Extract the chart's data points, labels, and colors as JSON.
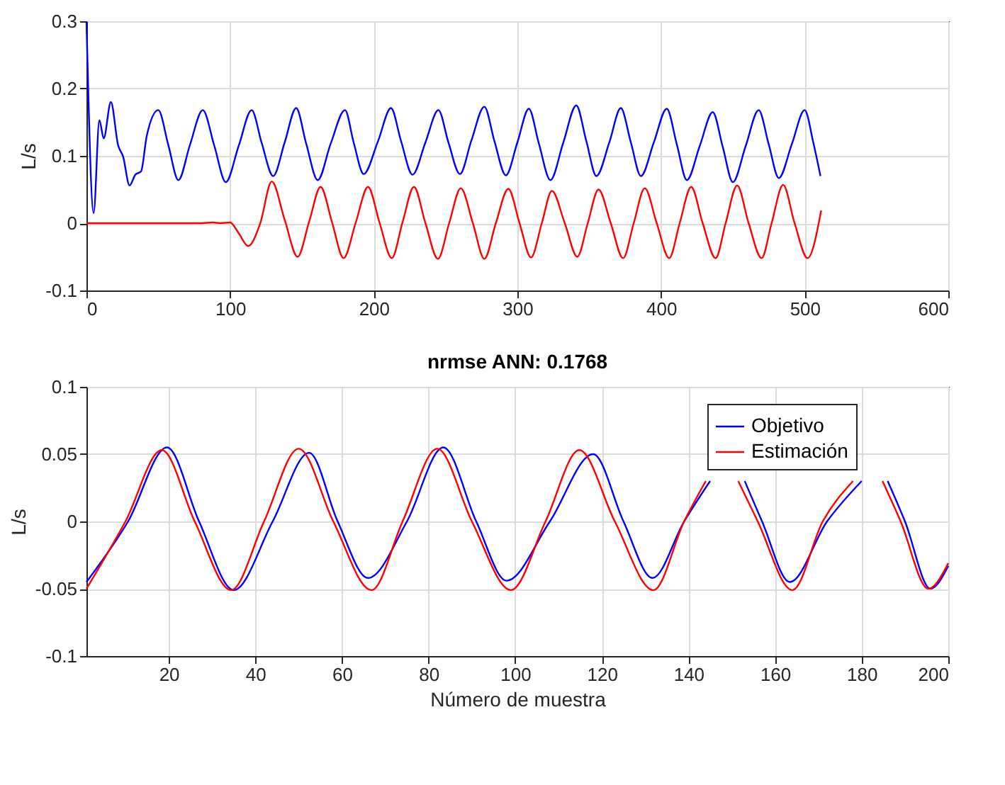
{
  "chart_data": [
    {
      "type": "line",
      "ylabel": "L/s",
      "xlim": [
        0,
        600
      ],
      "xticks": [
        0,
        100,
        200,
        300,
        400,
        500,
        600
      ],
      "ylim": [
        -0.1,
        0.3
      ],
      "yticks": [
        -0.1,
        0,
        0.1,
        0.2,
        0.3
      ],
      "grid": true,
      "legend": false,
      "series": [
        {
          "color": "#0000ff",
          "x": [
            0,
            5,
            9,
            12,
            17,
            22,
            25.5,
            30,
            34,
            38,
            42,
            50,
            57,
            64,
            72,
            81,
            89,
            97,
            106,
            115,
            122,
            130,
            138,
            146,
            153,
            161,
            170,
            180,
            186,
            193,
            203,
            212,
            219,
            227,
            236,
            245,
            252,
            260,
            268,
            277,
            284,
            292,
            300,
            308,
            315,
            323,
            332,
            341,
            348,
            355,
            364,
            372,
            379,
            386,
            395,
            404,
            411,
            418,
            427,
            436,
            443,
            450,
            459,
            468,
            475,
            482,
            491,
            500,
            506,
            511
          ],
          "values": [
            0.3,
            0.015,
            0.153,
            0.126,
            0.18,
            0.116,
            0.099,
            0.056,
            0.072,
            0.077,
            0.13,
            0.168,
            0.116,
            0.064,
            0.116,
            0.168,
            0.115,
            0.061,
            0.115,
            0.168,
            0.119,
            0.07,
            0.12,
            0.171,
            0.118,
            0.064,
            0.118,
            0.168,
            0.12,
            0.073,
            0.122,
            0.171,
            0.122,
            0.072,
            0.12,
            0.168,
            0.12,
            0.073,
            0.123,
            0.173,
            0.122,
            0.071,
            0.12,
            0.17,
            0.118,
            0.064,
            0.12,
            0.175,
            0.122,
            0.07,
            0.12,
            0.171,
            0.12,
            0.07,
            0.12,
            0.17,
            0.117,
            0.064,
            0.115,
            0.165,
            0.113,
            0.061,
            0.115,
            0.168,
            0.117,
            0.067,
            0.117,
            0.168,
            0.12,
            0.07
          ]
        },
        {
          "color": "#ff0000",
          "x": [
            0,
            80,
            88,
            93,
            100,
            106,
            112.6,
            121,
            129,
            138,
            147,
            155,
            163,
            171,
            179,
            187.5,
            196,
            204,
            212.6,
            220,
            228,
            236,
            244.7,
            252.5,
            260.6,
            269,
            277,
            285,
            293.7,
            301.5,
            309.5,
            317,
            324,
            333,
            341.7,
            349,
            356.5,
            365,
            373.6,
            381,
            388.7,
            397,
            405.7,
            413,
            421,
            429,
            438,
            445,
            453,
            461,
            470,
            477,
            485,
            493,
            502,
            511.5
          ],
          "values": [
            0,
            0,
            0.001,
            0,
            0.001,
            -0.015,
            -0.034,
            0,
            0.062,
            0.005,
            -0.05,
            0.002,
            0.054,
            0.001,
            -0.052,
            0.001,
            0.054,
            0.001,
            -0.052,
            0.001,
            0.054,
            0,
            -0.053,
            0,
            0.052,
            0,
            -0.053,
            0,
            0.051,
            0,
            -0.051,
            0,
            0.048,
            0,
            -0.05,
            0,
            0.05,
            0,
            -0.052,
            0,
            0.052,
            0,
            -0.052,
            0,
            0.054,
            0,
            -0.052,
            0,
            0.056,
            0,
            -0.052,
            0,
            0.057,
            0,
            -0.052,
            0.019
          ]
        }
      ]
    },
    {
      "type": "line",
      "title": "nrmse ANN: 0.1768",
      "xlabel": "Número de muestra",
      "ylabel": "L/s",
      "xlim": [
        1,
        200
      ],
      "xticks": [
        20,
        40,
        60,
        80,
        100,
        120,
        140,
        160,
        180,
        200
      ],
      "ylim": [
        -0.1,
        0.1
      ],
      "yticks": [
        -0.1,
        -0.05,
        0,
        0.05,
        0.1
      ],
      "grid": true,
      "legend": "top right",
      "series": [
        {
          "name": "Objetivo",
          "color": "#0000ff",
          "x": [
            1,
            10.6,
            19.6,
            27,
            35,
            44,
            52.4,
            59,
            66,
            75,
            83.4,
            91,
            98,
            108,
            118,
            125,
            131.7,
            139,
            145,
            150,
            153,
            157,
            163.4,
            172,
            180,
            183,
            186,
            190,
            195.9,
            200
          ],
          "values": [
            -0.045,
            0,
            0.055,
            0,
            -0.051,
            0,
            0.051,
            0,
            -0.042,
            0,
            0.055,
            0,
            -0.044,
            0,
            0.05,
            0,
            -0.042,
            0,
            0.03,
            null,
            0.03,
            0,
            -0.045,
            0,
            0.03,
            null,
            0.03,
            0,
            -0.05,
            -0.033
          ]
        },
        {
          "name": "Estimación",
          "color": "#ff0000",
          "x": [
            1,
            10,
            18.4,
            26,
            34.4,
            42,
            50,
            58,
            66.8,
            74,
            82,
            90,
            99,
            107,
            114.8,
            123,
            131.9,
            139,
            144,
            148,
            151.5,
            156,
            164,
            171,
            178,
            181,
            184.8,
            189,
            195.4,
            200
          ],
          "values": [
            -0.05,
            0,
            0.053,
            0,
            -0.051,
            0,
            0.054,
            0,
            -0.051,
            0,
            0.054,
            0,
            -0.051,
            0,
            0.053,
            0,
            -0.051,
            0,
            0.03,
            null,
            0.03,
            0,
            -0.051,
            0,
            0.03,
            null,
            0.03,
            0,
            -0.05,
            -0.031
          ]
        }
      ]
    }
  ]
}
